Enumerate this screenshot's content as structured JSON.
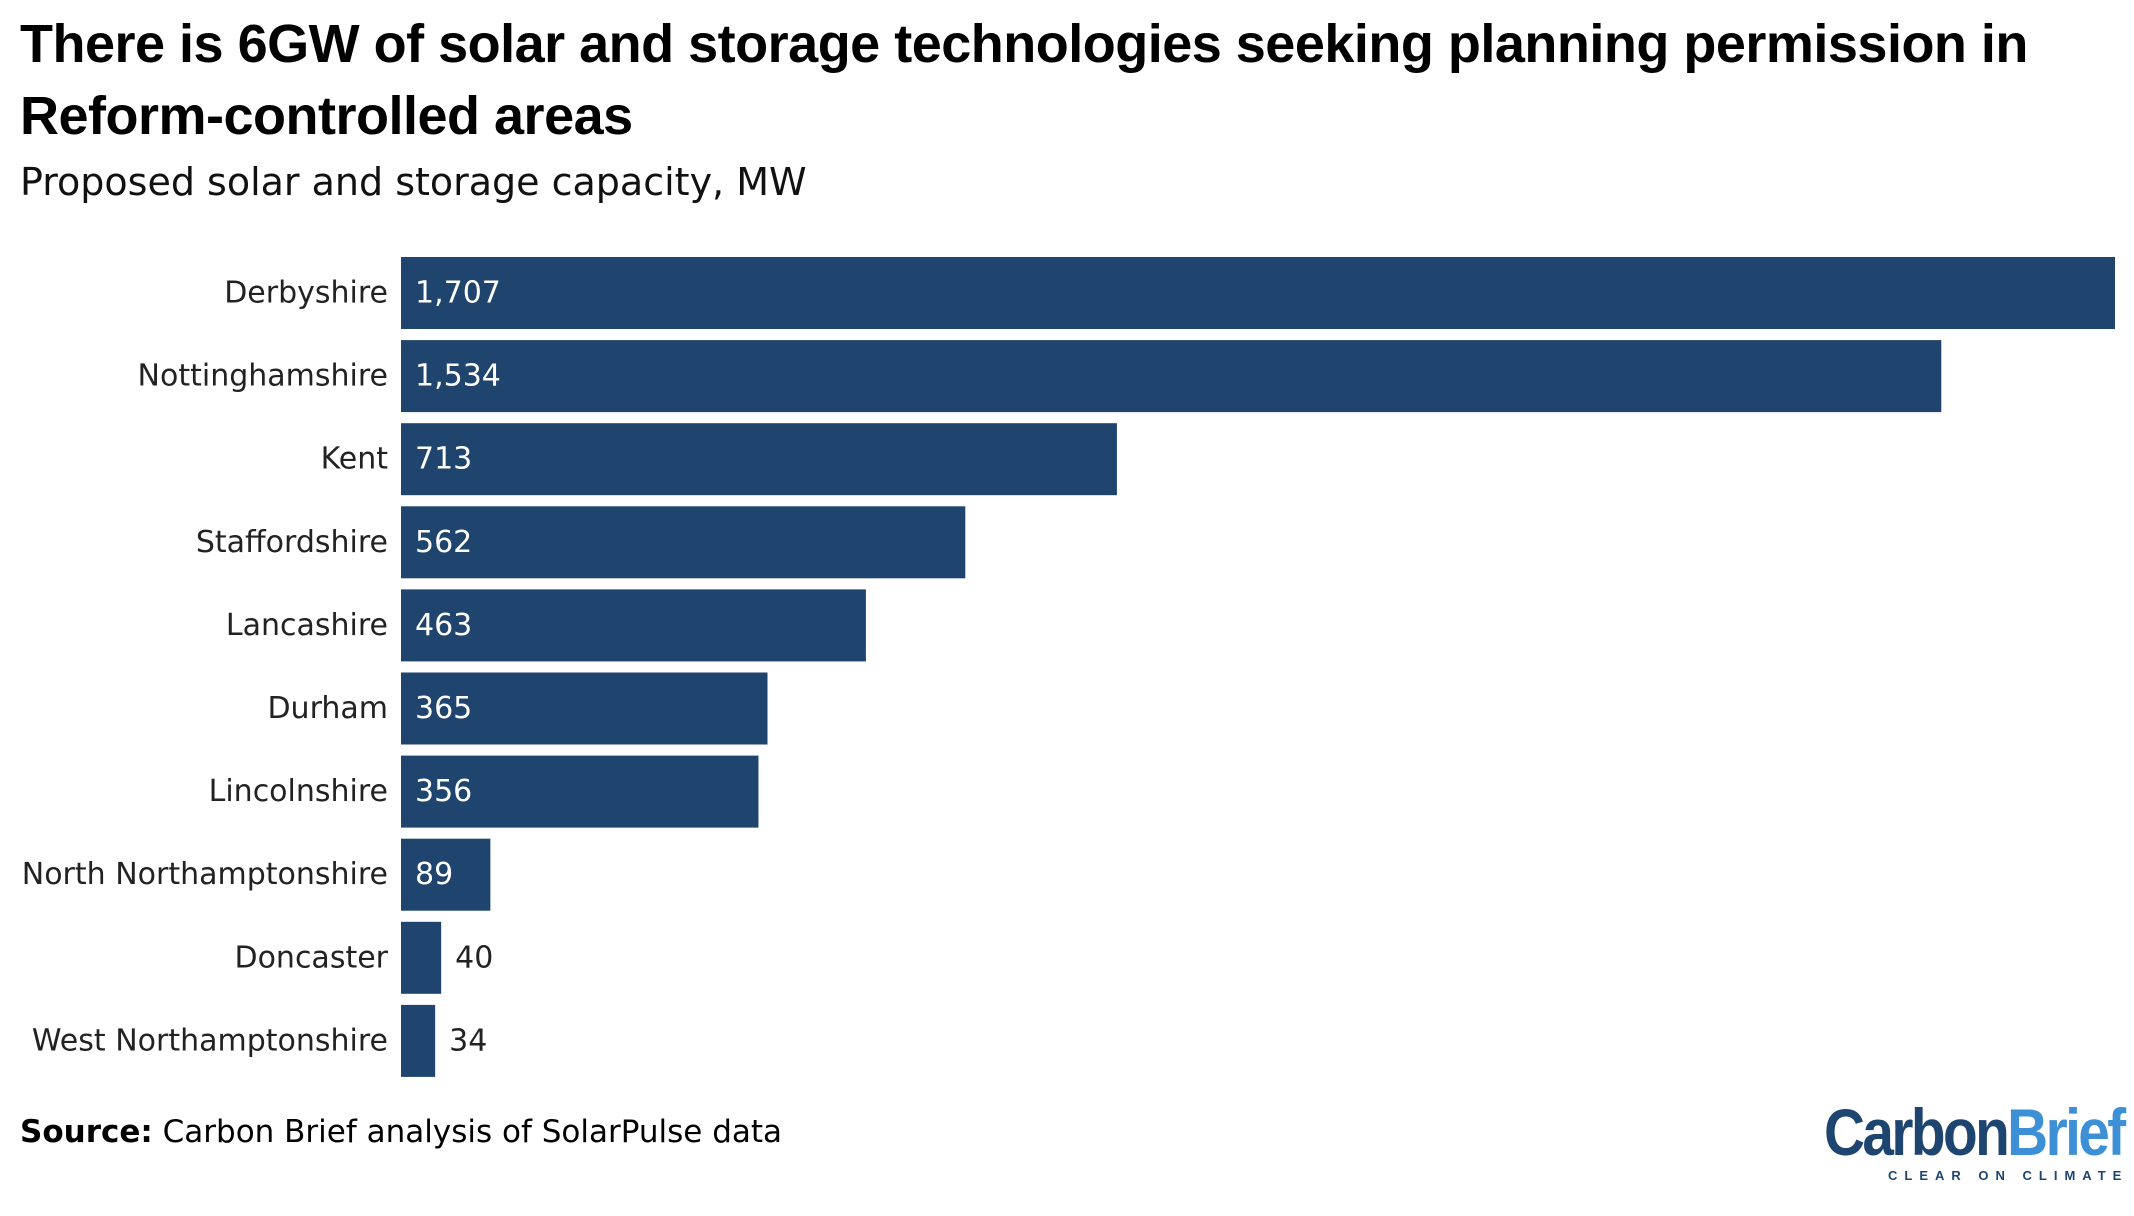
{
  "title": "There is 6GW of solar and storage technologies seeking planning permission in Reform-controlled areas",
  "subtitle": "Proposed solar and storage capacity, MW",
  "source_label": "Source:",
  "source_text": " Carbon Brief analysis of SolarPulse data",
  "logo": {
    "carbon": "Carbon",
    "brief": "Brief",
    "tagline": "CLEAR ON CLIMATE"
  },
  "colors": {
    "bar": "#1f446d",
    "label_inside": "#ffffff",
    "label_outside": "#222222",
    "category": "#222222"
  },
  "chart_data": {
    "type": "bar",
    "orientation": "horizontal",
    "title": "There is 6GW of solar and storage technologies seeking planning permission in Reform-controlled areas",
    "subtitle": "Proposed solar and storage capacity, MW",
    "xlabel": "",
    "ylabel": "",
    "unit": "MW",
    "grid": false,
    "legend": false,
    "xlim": [
      0,
      1707
    ],
    "categories": [
      "Derbyshire",
      "Nottinghamshire",
      "Kent",
      "Staffordshire",
      "Lancashire",
      "Durham",
      "Lincolnshire",
      "North Northamptonshire",
      "Doncaster",
      "West Northamptonshire"
    ],
    "values": [
      1707,
      1534,
      713,
      562,
      463,
      365,
      356,
      89,
      40,
      34
    ],
    "value_labels": [
      "1,707",
      "1,534",
      "713",
      "562",
      "463",
      "365",
      "356",
      "89",
      "40",
      "34"
    ]
  }
}
